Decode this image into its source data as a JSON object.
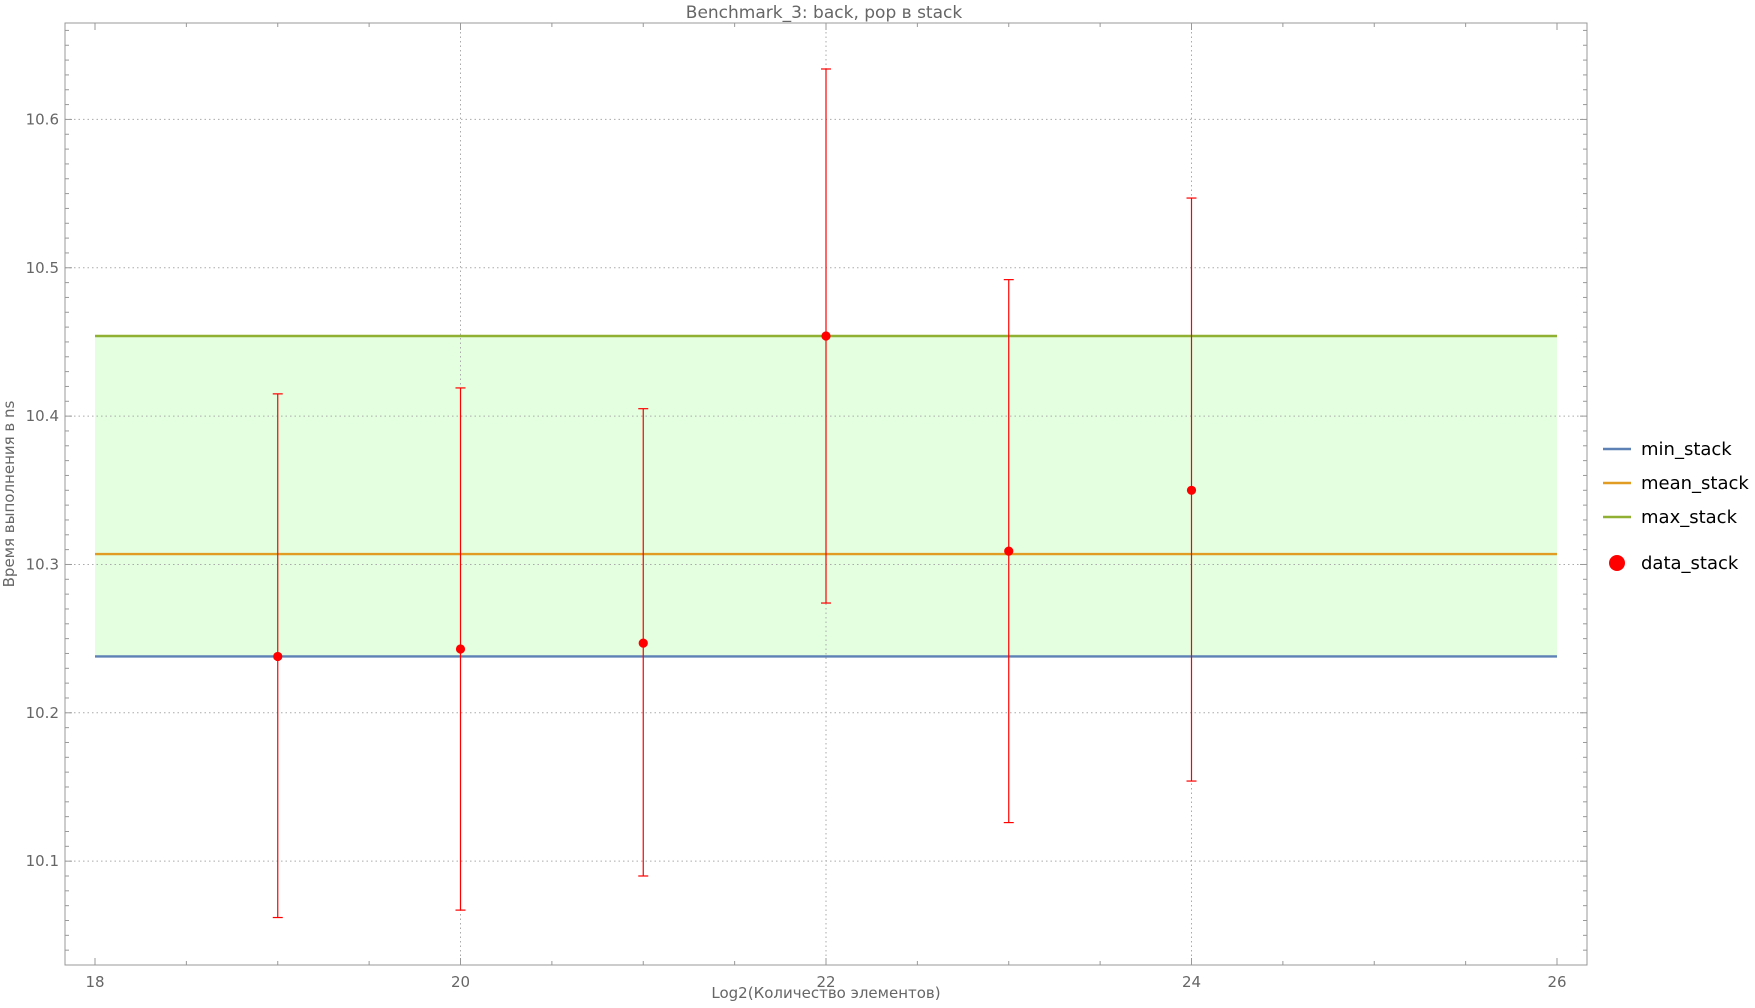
{
  "chart_data": {
    "type": "scatter",
    "title": "Benchmark_3: back, pop в stack",
    "xlabel": "Log2(Количество элементов)",
    "ylabel": "Время выполнения в ns",
    "xlim": [
      18,
      26
    ],
    "ylim": [
      10.03,
      10.665
    ],
    "x_ticks": [
      18,
      20,
      22,
      24,
      26
    ],
    "y_ticks": [
      10.1,
      10.2,
      10.3,
      10.4,
      10.5,
      10.6
    ],
    "grid": true,
    "legend_position": "right",
    "lines": [
      {
        "name": "min_stack",
        "value": 10.238,
        "x_range": [
          18,
          26
        ],
        "color": "#5e81b5"
      },
      {
        "name": "mean_stack",
        "value": 10.307,
        "x_range": [
          18,
          26
        ],
        "color": "#e19c24"
      },
      {
        "name": "max_stack",
        "value": 10.454,
        "x_range": [
          18,
          26
        ],
        "color": "#8fb032"
      }
    ],
    "band": {
      "from": 10.238,
      "to": 10.454,
      "x_range": [
        18,
        26
      ],
      "color": "#e3ffe0"
    },
    "series": [
      {
        "name": "data_stack",
        "color": "#ff0000",
        "points": [
          {
            "x": 19,
            "y": 10.238,
            "low": 10.062,
            "high": 10.415
          },
          {
            "x": 20,
            "y": 10.243,
            "low": 10.067,
            "high": 10.419
          },
          {
            "x": 21,
            "y": 10.247,
            "low": 10.09,
            "high": 10.405
          },
          {
            "x": 22,
            "y": 10.454,
            "low": 10.274,
            "high": 10.634
          },
          {
            "x": 23,
            "y": 10.309,
            "low": 10.126,
            "high": 10.492
          },
          {
            "x": 24,
            "y": 10.35,
            "low": 10.154,
            "high": 10.547
          }
        ]
      }
    ]
  }
}
